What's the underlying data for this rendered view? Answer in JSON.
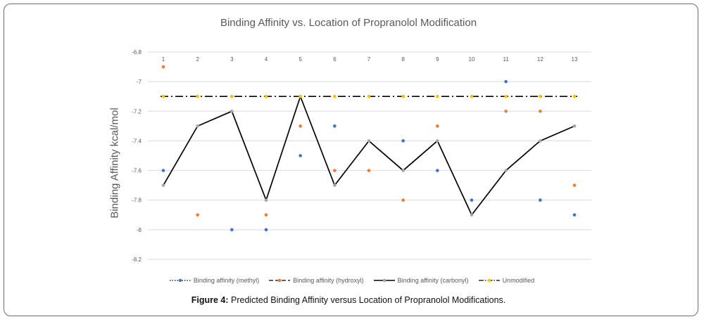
{
  "chart_data": {
    "type": "scatter",
    "title": "Binding Affinity vs. Location of Propranolol Modification",
    "ylabel": "Binding Affinity kcal/mol",
    "xlabel": "",
    "categories": [
      "1",
      "2",
      "3",
      "4",
      "5",
      "6",
      "7",
      "8",
      "9",
      "10",
      "11",
      "12",
      "13"
    ],
    "yticks": [
      "-6.8",
      "-7",
      "-7.2",
      "-7.4",
      "-7.6",
      "-7.8",
      "-8",
      "-8.2"
    ],
    "ylim": [
      -8.2,
      -6.8
    ],
    "x_axis_position": "top",
    "grid": true,
    "legend_position": "bottom",
    "series": [
      {
        "name": "Binding affinity (methyl)",
        "style": "markers",
        "color": "#4472c4",
        "values": [
          -7.6,
          null,
          -8.0,
          -8.0,
          -7.5,
          -7.3,
          null,
          -7.4,
          -7.6,
          -7.8,
          -7.0,
          -7.8,
          -7.9
        ]
      },
      {
        "name": "Binding affinity (hydroxyl)",
        "style": "markers",
        "color": "#ed7d31",
        "values": [
          -6.9,
          -7.9,
          null,
          -7.9,
          -7.3,
          -7.6,
          -7.6,
          -7.8,
          -7.3,
          null,
          -7.2,
          -7.2,
          -7.7
        ]
      },
      {
        "name": "Binding affinity (carbonyl)",
        "style": "line",
        "color": "#000000",
        "marker_color": "#a5a5a5",
        "values": [
          -7.7,
          -7.3,
          -7.2,
          -7.8,
          -7.1,
          -7.7,
          -7.4,
          -7.6,
          -7.4,
          -7.9,
          -7.6,
          -7.4,
          -7.3
        ]
      },
      {
        "name": "Unmodified",
        "style": "dash-dot",
        "color": "#000000",
        "marker_color": "#ffc000",
        "values": [
          -7.1,
          -7.1,
          -7.1,
          -7.1,
          -7.1,
          -7.1,
          -7.1,
          -7.1,
          -7.1,
          -7.1,
          -7.1,
          -7.1,
          -7.1
        ]
      }
    ]
  },
  "caption": {
    "label": "Figure 4:",
    "text": " Predicted Binding Affinity versus Location of Propranolol Modifications."
  }
}
